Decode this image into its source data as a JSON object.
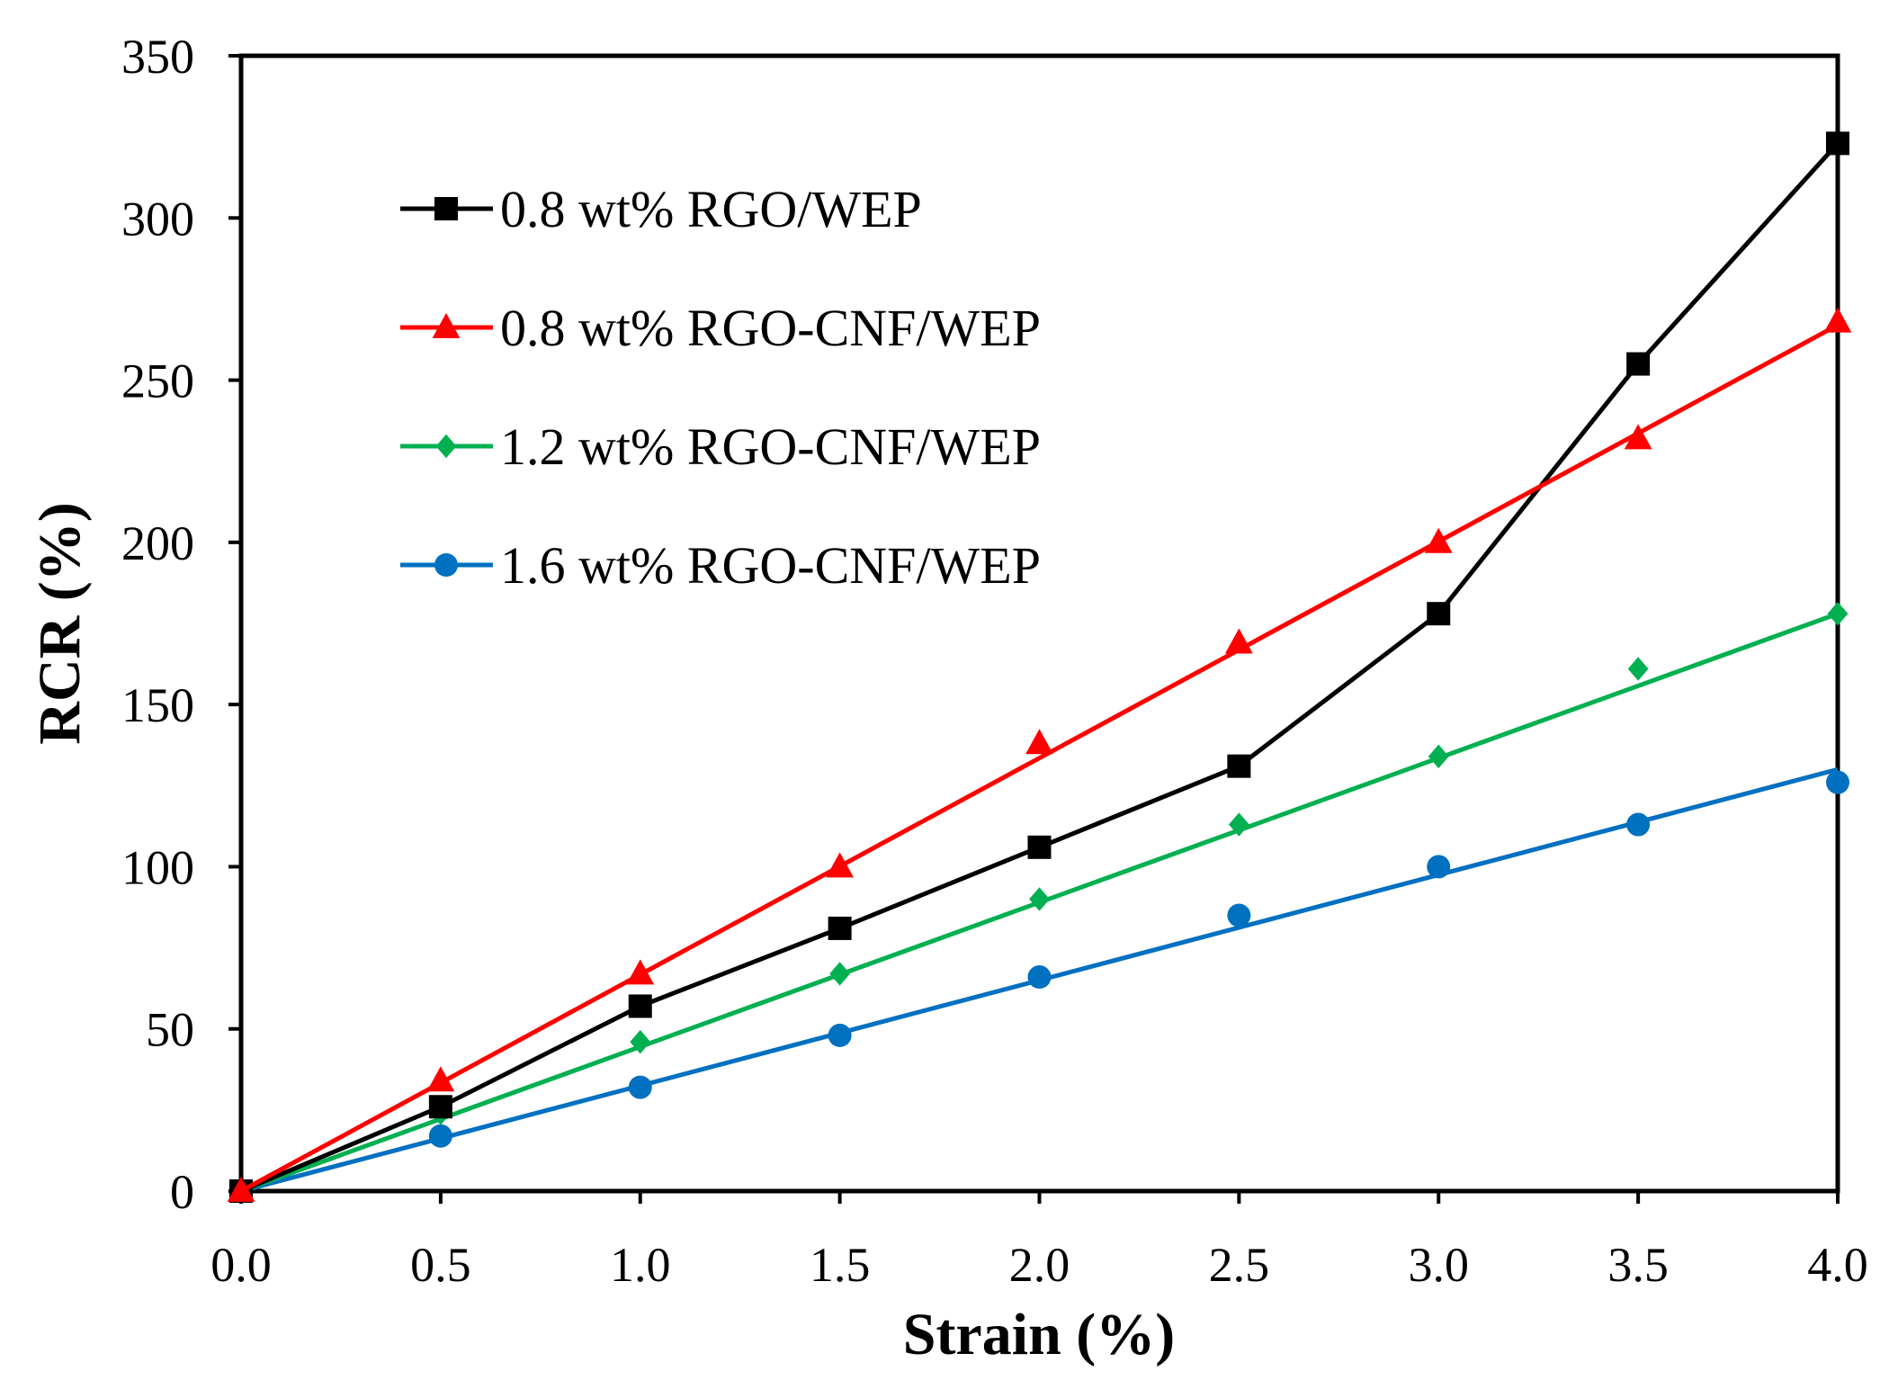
{
  "chart_data": {
    "type": "line",
    "title": "",
    "xlabel": "Strain (%)",
    "ylabel": "RCR (%)",
    "xlim": [
      0,
      4
    ],
    "ylim": [
      0,
      350
    ],
    "xticks": [
      "0.0",
      "0.5",
      "1.0",
      "1.5",
      "2.0",
      "2.5",
      "3.0",
      "3.5",
      "4.0"
    ],
    "yticks": [
      "0",
      "50",
      "100",
      "150",
      "200",
      "250",
      "300",
      "350"
    ],
    "grid": false,
    "legend_position": "top-left",
    "x": [
      0,
      0.5,
      1.0,
      1.5,
      2.0,
      2.5,
      3.0,
      3.5,
      4.0
    ],
    "series": [
      {
        "name": "0.8 wt% RGO/WEP",
        "color": "#000000",
        "marker": "square",
        "values": [
          0,
          26,
          57,
          81,
          106,
          131,
          178,
          255,
          323
        ],
        "fit": "connect"
      },
      {
        "name": "0.8 wt% RGO-CNF/WEP",
        "color": "#ff0000",
        "marker": "triangle",
        "values": [
          0,
          34,
          67,
          100,
          138,
          169,
          200,
          232,
          268
        ],
        "fit": "linear",
        "fit_line": [
          0,
          267
        ]
      },
      {
        "name": "1.2 wt% RGO-CNF/WEP",
        "color": "#00b050",
        "marker": "diamond",
        "values": [
          0,
          24,
          46,
          67,
          90,
          113,
          134,
          161,
          178
        ],
        "fit": "linear",
        "fit_line": [
          0,
          178
        ]
      },
      {
        "name": "1.6 wt% RGO-CNF/WEP",
        "color": "#0070c0",
        "marker": "circle",
        "values": [
          0,
          17,
          32,
          48,
          66,
          85,
          100,
          113,
          126
        ],
        "fit": "linear",
        "fit_line": [
          0,
          130
        ]
      }
    ]
  }
}
